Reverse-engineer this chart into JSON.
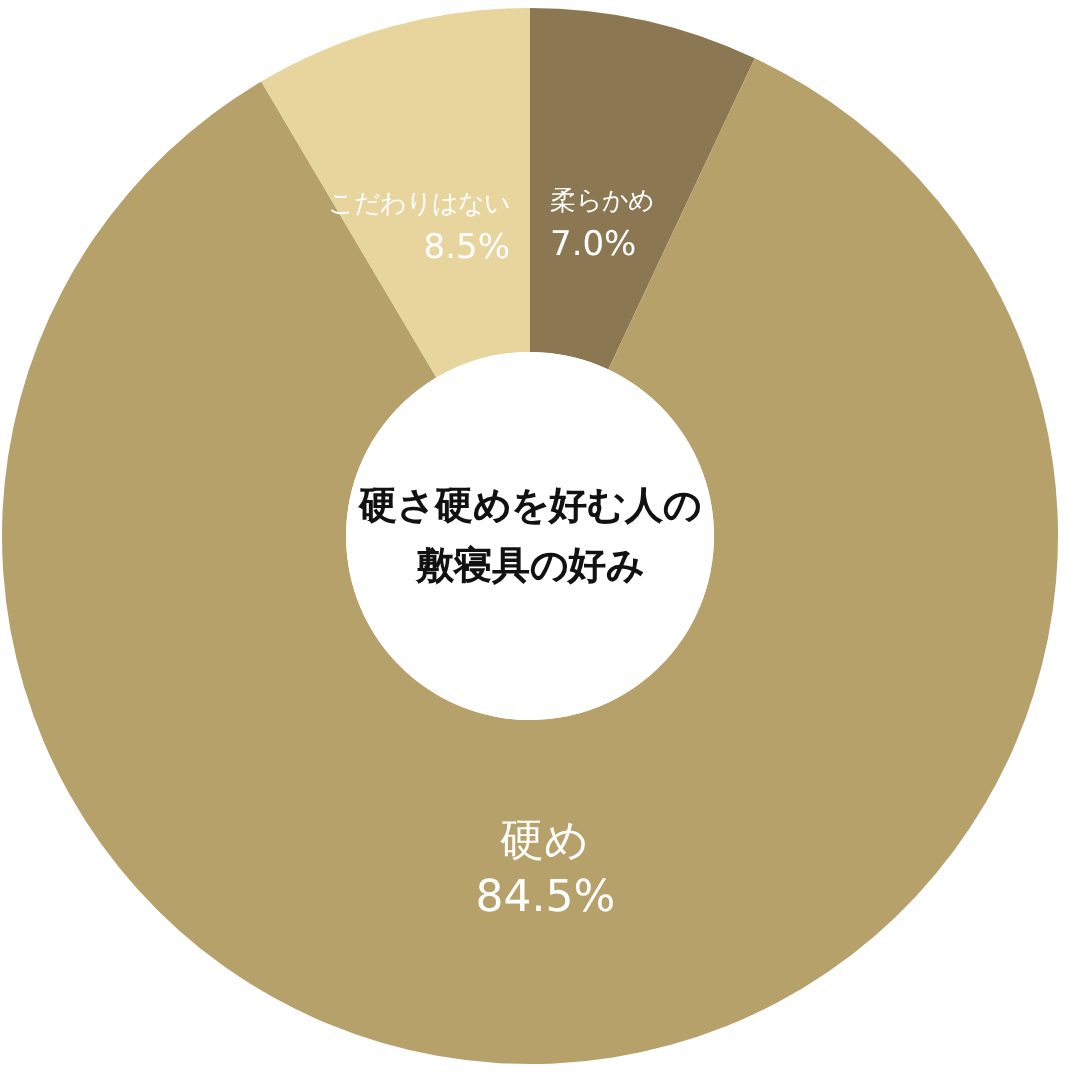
{
  "chart_data": {
    "type": "donut",
    "title": "硬さ硬めを好む人の敷寝具の好み",
    "categories": [
      "柔らかめ",
      "硬め",
      "こだわりはない"
    ],
    "values": [
      7.0,
      84.5,
      8.5
    ],
    "value_labels": [
      "7.0%",
      "84.5%",
      "8.5%"
    ],
    "colors": [
      "#8b7852",
      "#b7a16a",
      "#e8d49d"
    ]
  }
}
